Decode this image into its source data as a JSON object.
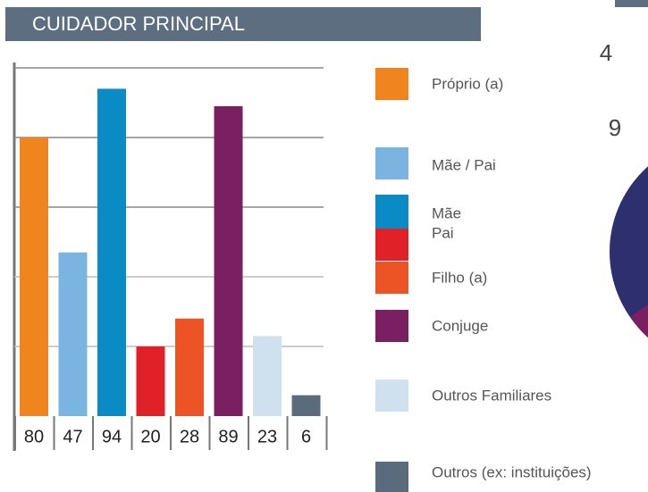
{
  "chart_data": {
    "type": "bar",
    "title": "CUIDADOR  PRINCIPAL",
    "categories": [
      "Próprio (a)",
      "Mãe / Pai",
      "Mãe",
      "Pai",
      "Filho (a)",
      "Conjuge",
      "Outros Familiares",
      "Outros (ex: instituições)"
    ],
    "values": [
      80,
      47,
      94,
      20,
      28,
      89,
      23,
      6
    ],
    "colors": [
      "#f0841f",
      "#7ab4e0",
      "#0a8bc6",
      "#e02228",
      "#ec5325",
      "#7b1f63",
      "#cfe1ef",
      "#5b6b7e"
    ],
    "ylim": [
      0,
      100
    ],
    "yticks": [
      0,
      20,
      40,
      60,
      80,
      100
    ],
    "grid": true,
    "annotations": [
      "4",
      "9"
    ]
  }
}
